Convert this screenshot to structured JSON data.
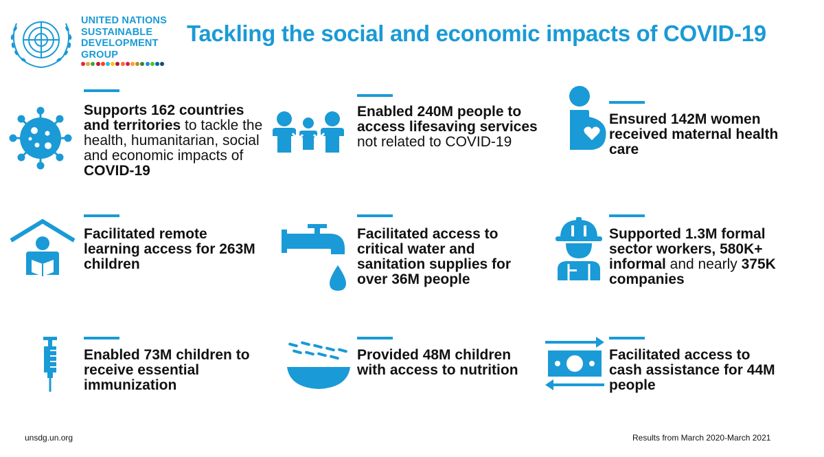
{
  "header": {
    "org_lines": [
      "UNITED NATIONS",
      "SUSTAINABLE",
      "DEVELOPMENT",
      "GROUP"
    ],
    "title": "Tackling the social and economic impacts of COVID-19",
    "sdg_dot_colors": [
      "#e5243b",
      "#dda63a",
      "#4c9f38",
      "#c5192d",
      "#ff3a21",
      "#26bde2",
      "#fcc30b",
      "#a21942",
      "#fd6925",
      "#dd1367",
      "#fd9d24",
      "#bf8b2e",
      "#3f7e44",
      "#0a97d9",
      "#56c02b",
      "#00689d",
      "#19486a"
    ]
  },
  "accent_color": "#1a9ad6",
  "stats": [
    {
      "icon": "virus-icon",
      "parts": [
        {
          "t": "Supports 162 countries and territories",
          "b": true
        },
        {
          "t": " to tackle the health, humanitarian, social and economic impacts of ",
          "b": false
        },
        {
          "t": "COVID-19",
          "b": true
        }
      ]
    },
    {
      "icon": "people-group-icon",
      "parts": [
        {
          "t": "Enabled 240M people to access lifesaving services",
          "b": true
        },
        {
          "t": " not related to COVID-19",
          "b": false
        }
      ]
    },
    {
      "icon": "pregnant-woman-heart-icon",
      "parts": [
        {
          "t": "Ensured 142M women received maternal health care",
          "b": true
        }
      ]
    },
    {
      "icon": "home-learning-child-icon",
      "parts": [
        {
          "t": "Facilitated remote learning access for 263M children",
          "b": true
        }
      ]
    },
    {
      "icon": "water-tap-icon",
      "parts": [
        {
          "t": "Facilitated access to critical water and sanitation supplies for over 36M people",
          "b": true
        }
      ]
    },
    {
      "icon": "worker-hardhat-icon",
      "parts": [
        {
          "t": "Supported 1.3M formal sector workers, 580K+ informal",
          "b": true
        },
        {
          "t": " and nearly ",
          "b": false
        },
        {
          "t": "375K",
          "b": true
        },
        {
          "t": " companies",
          "b": true
        }
      ]
    },
    {
      "icon": "syringe-icon",
      "parts": [
        {
          "t": "Enabled 73M children to receive essential immunization",
          "b": true
        }
      ]
    },
    {
      "icon": "food-bowl-icon",
      "parts": [
        {
          "t": "Provided 48M children with access to nutrition",
          "b": true
        }
      ]
    },
    {
      "icon": "cash-transfer-icon",
      "parts": [
        {
          "t": "Facilitated access to cash assistance for 44M people",
          "b": true
        }
      ]
    }
  ],
  "footer": {
    "website": "unsdg.un.org",
    "period": "Results from March 2020-March 2021"
  }
}
